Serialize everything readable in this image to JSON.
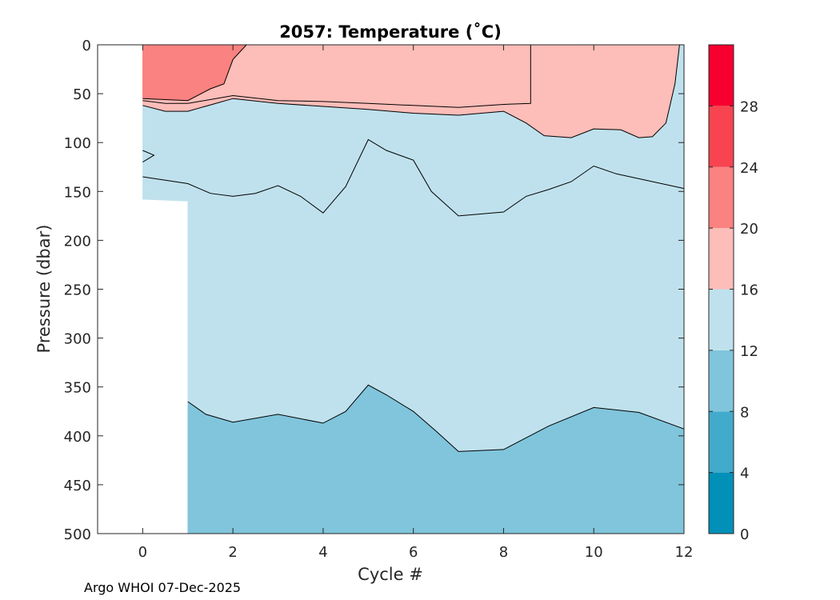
{
  "chart_data": {
    "type": "filled-contour",
    "title": "2057:  Temperature (˚C)",
    "xlabel": "Cycle #",
    "ylabel": "Pressure (dbar)",
    "xlim": [
      -1,
      12
    ],
    "ylim": [
      0,
      500
    ],
    "y_reversed": true,
    "xticks": [
      0,
      2,
      4,
      6,
      8,
      10,
      12
    ],
    "yticks": [
      0,
      50,
      100,
      150,
      200,
      250,
      300,
      350,
      400,
      450,
      500
    ],
    "colorbar": {
      "range": [
        0,
        32
      ],
      "ticks": [
        0,
        4,
        8,
        12,
        16,
        20,
        24,
        28
      ],
      "levels": [
        0,
        4,
        8,
        12,
        16,
        20,
        24,
        28,
        32
      ],
      "colors": [
        "#0090b8",
        "#42aacb",
        "#80c5dc",
        "#bfe1ed",
        "#fdbdb9",
        "#fa8280",
        "#f74450",
        "#f70030"
      ]
    },
    "regions": [
      {
        "name": "8-12",
        "color": "#80c5dc",
        "points": [
          [
            1.0,
            365
          ],
          [
            1.4,
            378
          ],
          [
            2.0,
            386
          ],
          [
            3.0,
            378
          ],
          [
            4.0,
            387
          ],
          [
            4.5,
            375
          ],
          [
            5.0,
            348
          ],
          [
            5.4,
            358
          ],
          [
            6.0,
            375
          ],
          [
            6.5,
            395
          ],
          [
            7.0,
            416
          ],
          [
            8.0,
            414
          ],
          [
            9.0,
            390
          ],
          [
            10.0,
            371
          ],
          [
            11.0,
            376
          ],
          [
            12.0,
            393
          ],
          [
            12.0,
            500
          ],
          [
            1.0,
            500
          ]
        ]
      },
      {
        "name": "12-16",
        "color": "#bfe1ed",
        "points": [
          [
            0.0,
            62
          ],
          [
            0.5,
            68
          ],
          [
            1.0,
            68
          ],
          [
            2.0,
            55
          ],
          [
            3.0,
            60
          ],
          [
            4.0,
            63
          ],
          [
            5.0,
            66
          ],
          [
            6.0,
            70
          ],
          [
            7.0,
            72
          ],
          [
            8.0,
            68
          ],
          [
            8.5,
            80
          ],
          [
            8.9,
            93
          ],
          [
            9.5,
            95
          ],
          [
            10.0,
            86
          ],
          [
            10.6,
            87
          ],
          [
            11.0,
            95
          ],
          [
            11.3,
            94
          ],
          [
            11.6,
            80
          ],
          [
            11.8,
            40
          ],
          [
            11.9,
            0
          ],
          [
            12.0,
            0
          ],
          [
            12.0,
            393
          ],
          [
            11.0,
            376
          ],
          [
            10.0,
            371
          ],
          [
            9.0,
            390
          ],
          [
            8.0,
            414
          ],
          [
            7.0,
            416
          ],
          [
            6.5,
            395
          ],
          [
            6.0,
            375
          ],
          [
            5.4,
            358
          ],
          [
            5.0,
            348
          ],
          [
            4.5,
            375
          ],
          [
            4.0,
            387
          ],
          [
            3.0,
            378
          ],
          [
            2.0,
            386
          ],
          [
            1.4,
            378
          ],
          [
            1.0,
            365
          ],
          [
            1.0,
            160
          ],
          [
            0.0,
            158
          ]
        ]
      },
      {
        "name": "16-20",
        "color": "#fdbdb9",
        "points": [
          [
            0.0,
            0
          ],
          [
            11.9,
            0
          ],
          [
            11.8,
            40
          ],
          [
            11.6,
            80
          ],
          [
            11.3,
            94
          ],
          [
            11.0,
            95
          ],
          [
            10.6,
            87
          ],
          [
            10.0,
            86
          ],
          [
            9.5,
            95
          ],
          [
            8.9,
            93
          ],
          [
            8.5,
            80
          ],
          [
            8.0,
            68
          ],
          [
            7.0,
            72
          ],
          [
            6.0,
            70
          ],
          [
            5.0,
            66
          ],
          [
            4.0,
            63
          ],
          [
            3.0,
            60
          ],
          [
            2.0,
            55
          ],
          [
            1.0,
            68
          ],
          [
            0.5,
            68
          ],
          [
            0.0,
            62
          ]
        ]
      },
      {
        "name": "20-24",
        "color": "#fa8280",
        "points": [
          [
            0.0,
            0
          ],
          [
            2.3,
            0
          ],
          [
            2.0,
            15
          ],
          [
            1.8,
            40
          ],
          [
            1.5,
            45
          ],
          [
            1.0,
            57
          ],
          [
            0.0,
            55
          ]
        ]
      }
    ],
    "contour_lines": [
      {
        "level": 20,
        "points": [
          [
            0.0,
            55
          ],
          [
            1.0,
            57
          ],
          [
            1.5,
            45
          ],
          [
            1.8,
            40
          ],
          [
            2.0,
            15
          ],
          [
            2.3,
            0
          ]
        ]
      },
      {
        "level": 16,
        "points": [
          [
            0.0,
            57
          ],
          [
            0.5,
            60
          ],
          [
            1.0,
            60
          ],
          [
            2.0,
            52
          ],
          [
            3.0,
            57
          ],
          [
            4.0,
            58
          ],
          [
            5.0,
            60
          ],
          [
            6.0,
            62
          ],
          [
            7.0,
            64
          ],
          [
            8.0,
            61
          ],
          [
            8.6,
            60
          ],
          [
            8.6,
            0
          ]
        ]
      },
      {
        "level": 16,
        "points": [
          [
            0.0,
            62
          ],
          [
            0.5,
            68
          ],
          [
            1.0,
            68
          ],
          [
            2.0,
            55
          ],
          [
            3.0,
            60
          ],
          [
            4.0,
            63
          ],
          [
            5.0,
            66
          ],
          [
            6.0,
            70
          ],
          [
            7.0,
            72
          ],
          [
            8.0,
            68
          ],
          [
            8.5,
            80
          ],
          [
            8.9,
            93
          ],
          [
            9.5,
            95
          ],
          [
            10.0,
            86
          ],
          [
            10.6,
            87
          ],
          [
            11.0,
            95
          ],
          [
            11.3,
            94
          ],
          [
            11.6,
            80
          ],
          [
            11.8,
            40
          ],
          [
            11.9,
            0
          ]
        ]
      },
      {
        "level": 14,
        "points": [
          [
            0.0,
            108
          ],
          [
            0.25,
            113
          ],
          [
            0.0,
            120
          ]
        ]
      },
      {
        "level": 14,
        "points": [
          [
            0.0,
            135
          ],
          [
            1.0,
            142
          ],
          [
            1.5,
            152
          ],
          [
            2.0,
            155
          ],
          [
            2.5,
            152
          ],
          [
            3.0,
            144
          ],
          [
            3.5,
            155
          ],
          [
            4.0,
            172
          ],
          [
            4.5,
            145
          ],
          [
            5.0,
            97
          ],
          [
            5.4,
            108
          ],
          [
            6.0,
            118
          ],
          [
            6.4,
            150
          ],
          [
            7.0,
            175
          ],
          [
            8.0,
            171
          ],
          [
            8.5,
            155
          ],
          [
            9.0,
            148
          ],
          [
            9.5,
            140
          ],
          [
            10.0,
            124
          ],
          [
            10.5,
            132
          ],
          [
            11.0,
            137
          ],
          [
            12.0,
            147
          ]
        ]
      },
      {
        "level": 12,
        "points": [
          [
            1.0,
            365
          ],
          [
            1.4,
            378
          ],
          [
            2.0,
            386
          ],
          [
            3.0,
            378
          ],
          [
            4.0,
            387
          ],
          [
            4.5,
            375
          ],
          [
            5.0,
            348
          ],
          [
            5.4,
            358
          ],
          [
            6.0,
            375
          ],
          [
            6.5,
            395
          ],
          [
            7.0,
            416
          ],
          [
            8.0,
            414
          ],
          [
            9.0,
            390
          ],
          [
            10.0,
            371
          ],
          [
            11.0,
            376
          ],
          [
            12.0,
            393
          ]
        ]
      }
    ]
  },
  "footer": {
    "credit": "Argo WHOI 07-Dec-2025"
  }
}
